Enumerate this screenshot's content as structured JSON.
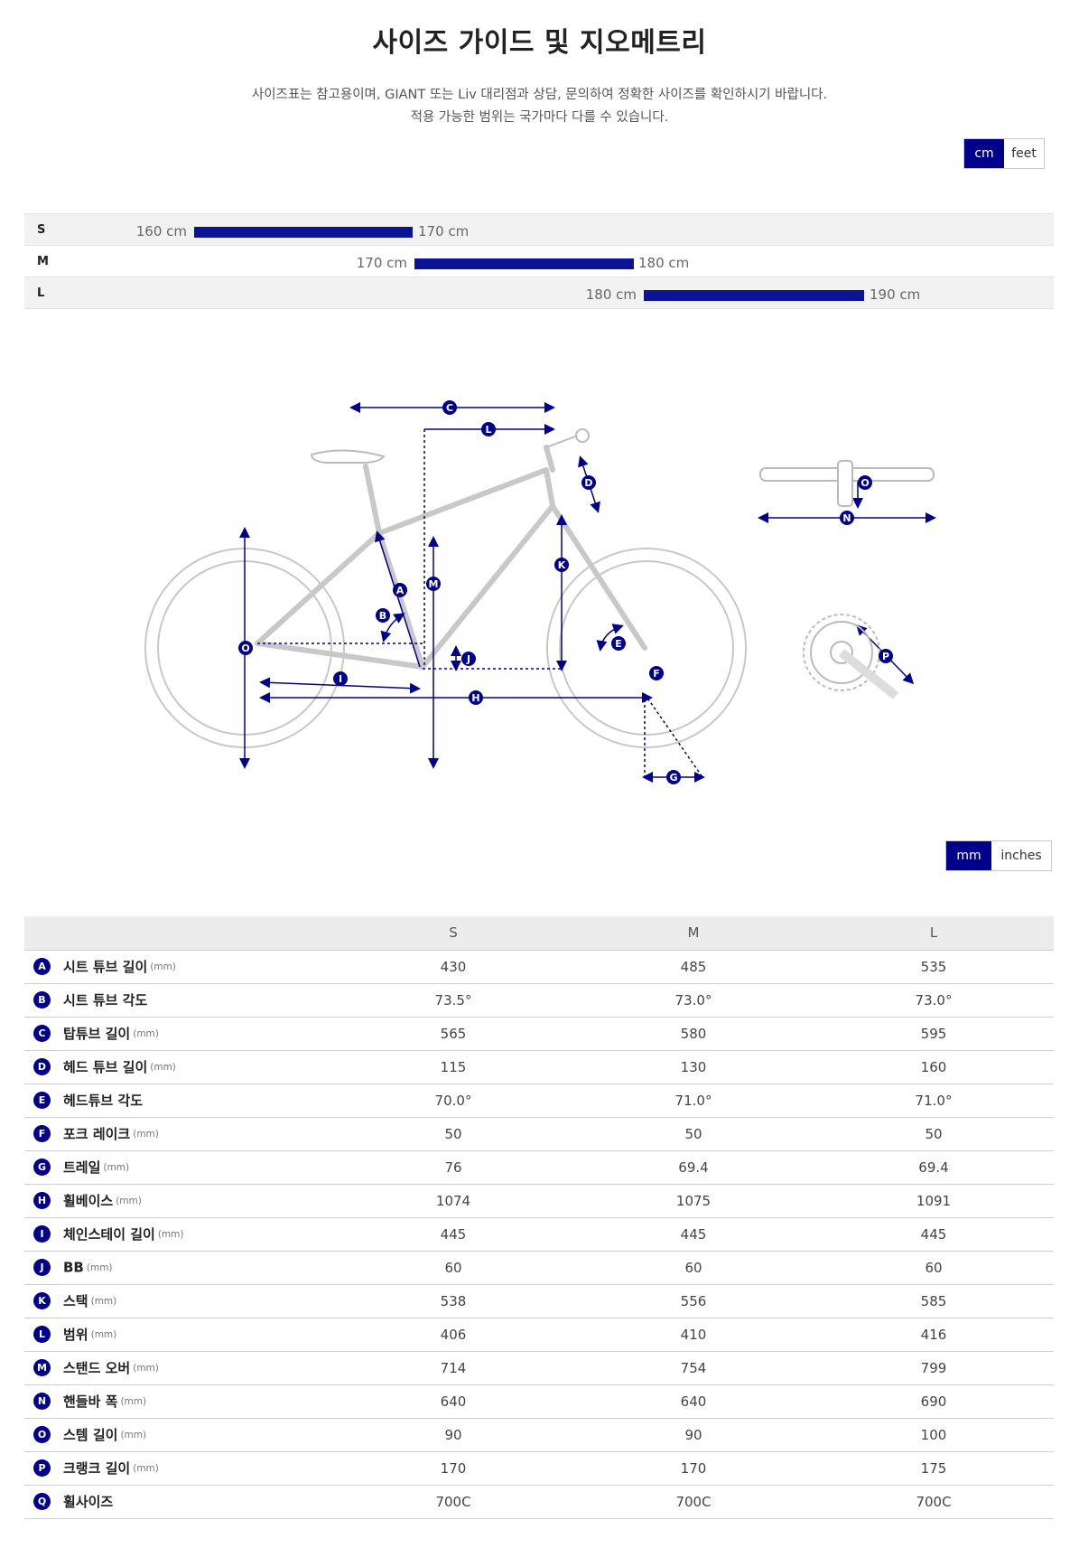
{
  "title": "사이즈 가이드 및 지오메트리",
  "description": {
    "line1": "사이즈표는 참고용이며, GIANT 또는 Liv 대리점과 상담, 문의하여 정확한 사이즈를 확인하시기 바랍니다.",
    "line2": "적용 가능한 범위는 국가마다 다를 수 있습니다."
  },
  "height_unit_toggle": {
    "options": [
      "cm",
      "feet"
    ],
    "selected": "cm"
  },
  "size_ranges": [
    {
      "size": "S",
      "min": "160 cm",
      "max": "170 cm"
    },
    {
      "size": "M",
      "min": "170 cm",
      "max": "180 cm"
    },
    {
      "size": "L",
      "min": "180 cm",
      "max": "190 cm"
    }
  ],
  "geometry_unit_toggle": {
    "options": [
      "mm",
      "inches"
    ],
    "selected": "mm"
  },
  "diagram_labels": [
    "A",
    "B",
    "C",
    "D",
    "E",
    "F",
    "G",
    "H",
    "I",
    "J",
    "K",
    "L",
    "M",
    "N",
    "O",
    "P"
  ],
  "colors": {
    "accent": "#00008c",
    "bar": "#0a1494",
    "frame": "#c8c8c8"
  },
  "geometry": {
    "headers": [
      "",
      "S",
      "M",
      "L"
    ],
    "rows": [
      {
        "key": "A",
        "name": "시트 튜브 길이",
        "unit": "(mm)",
        "values": [
          "430",
          "485",
          "535"
        ]
      },
      {
        "key": "B",
        "name": "시트 튜브 각도",
        "unit": "",
        "values": [
          "73.5°",
          "73.0°",
          "73.0°"
        ]
      },
      {
        "key": "C",
        "name": "탑튜브 길이",
        "unit": "(mm)",
        "values": [
          "565",
          "580",
          "595"
        ]
      },
      {
        "key": "D",
        "name": "헤드 튜브 길이",
        "unit": "(mm)",
        "values": [
          "115",
          "130",
          "160"
        ]
      },
      {
        "key": "E",
        "name": "헤드튜브 각도",
        "unit": "",
        "values": [
          "70.0°",
          "71.0°",
          "71.0°"
        ]
      },
      {
        "key": "F",
        "name": "포크 레이크",
        "unit": "(mm)",
        "values": [
          "50",
          "50",
          "50"
        ]
      },
      {
        "key": "G",
        "name": "트레일",
        "unit": "(mm)",
        "values": [
          "76",
          "69.4",
          "69.4"
        ]
      },
      {
        "key": "H",
        "name": "휠베이스",
        "unit": "(mm)",
        "values": [
          "1074",
          "1075",
          "1091"
        ]
      },
      {
        "key": "I",
        "name": "체인스테이 길이",
        "unit": "(mm)",
        "values": [
          "445",
          "445",
          "445"
        ]
      },
      {
        "key": "J",
        "name": "BB",
        "unit": "(mm)",
        "values": [
          "60",
          "60",
          "60"
        ]
      },
      {
        "key": "K",
        "name": "스택",
        "unit": "(mm)",
        "values": [
          "538",
          "556",
          "585"
        ]
      },
      {
        "key": "L",
        "name": "범위",
        "unit": "(mm)",
        "values": [
          "406",
          "410",
          "416"
        ]
      },
      {
        "key": "M",
        "name": "스탠드 오버",
        "unit": "(mm)",
        "values": [
          "714",
          "754",
          "799"
        ]
      },
      {
        "key": "N",
        "name": "핸들바 폭",
        "unit": "(mm)",
        "values": [
          "640",
          "640",
          "690"
        ]
      },
      {
        "key": "O",
        "name": "스템 길이",
        "unit": "(mm)",
        "values": [
          "90",
          "90",
          "100"
        ]
      },
      {
        "key": "P",
        "name": "크랭크 길이",
        "unit": "(mm)",
        "values": [
          "170",
          "170",
          "175"
        ]
      },
      {
        "key": "Q",
        "name": "휠사이즈",
        "unit": "",
        "values": [
          "700C",
          "700C",
          "700C"
        ]
      }
    ]
  }
}
